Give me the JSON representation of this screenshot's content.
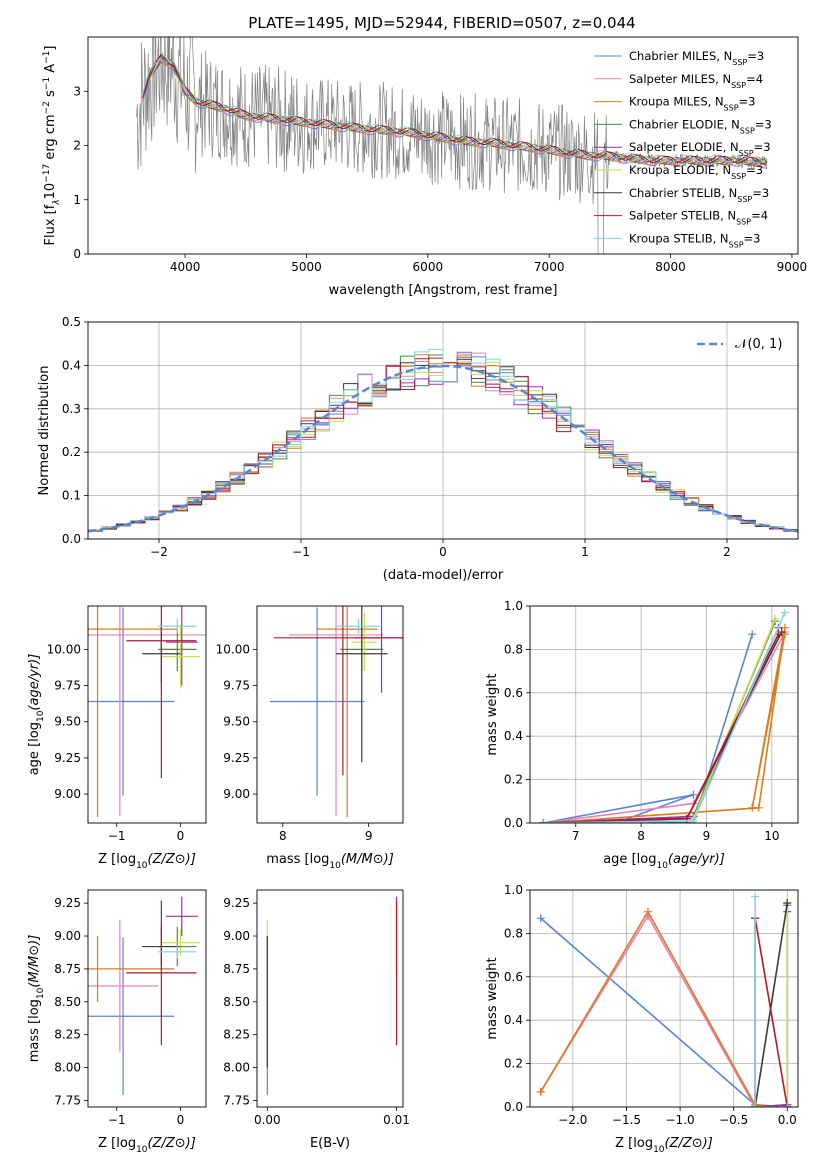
{
  "figure_title": "PLATE=1495, MJD=52944, FIBERID=0507, z=0.044",
  "colors": {
    "Chabrier MILES": "#5b84d6",
    "Salpeter MILES": "#e882b8",
    "Kroupa MILES": "#e07a1f",
    "Chabrier ELODIE": "#4f8a3c",
    "Salpeter ELODIE": "#9b2fae",
    "Kroupa ELODIE": "#c6df4a",
    "Chabrier STELIB": "#3a3a3a",
    "Salpeter STELIB": "#b2182b",
    "Kroupa STELIB": "#7fd4e0",
    "data": "#808080",
    "normal": "#5b84d6"
  },
  "chart_data": [
    {
      "id": "spectrum",
      "type": "line",
      "xlabel": "wavelength [Angstrom, rest frame]",
      "ylabel_plain": "Flux [f",
      "ylabel_sub": "λ",
      "ylabel_rest": "10",
      "ylabel_exp": "−17",
      "ylabel_unit": " erg cm",
      "ylabel_unit_exp": "−2",
      "ylabel_s": " s",
      "ylabel_s_exp": "−1",
      "ylabel_A": " A",
      "ylabel_A_exp": "−1",
      "ylabel_close": "]",
      "xlim": [
        3200,
        9050
      ],
      "ylim": [
        0,
        4.0
      ],
      "xticks": [
        4000,
        5000,
        6000,
        7000,
        8000,
        9000
      ],
      "yticks": [
        0,
        1,
        2,
        3
      ],
      "grid": false,
      "legend_position": "top-right",
      "legend": [
        {
          "name": "Chabrier MILES",
          "nssp": "3"
        },
        {
          "name": "Salpeter MILES",
          "nssp": "4"
        },
        {
          "name": "Kroupa MILES",
          "nssp": "3"
        },
        {
          "name": "Chabrier ELODIE",
          "nssp": "3"
        },
        {
          "name": "Salpeter ELODIE",
          "nssp": "3"
        },
        {
          "name": "Kroupa ELODIE",
          "nssp": "3"
        },
        {
          "name": "Chabrier STELIB",
          "nssp": "3"
        },
        {
          "name": "Salpeter STELIB",
          "nssp": "4"
        },
        {
          "name": "Kroupa STELIB",
          "nssp": "3"
        }
      ],
      "legend_nssp_label": "N",
      "legend_nssp_sub": "SSP",
      "model_continuum": {
        "x": [
          3650,
          3700,
          3800,
          3900,
          4000,
          4100,
          4200,
          4300,
          4500,
          4700,
          4900,
          5100,
          5300,
          5500,
          5700,
          5900,
          6100,
          6300,
          6500,
          6700,
          6900,
          7100,
          7300,
          7500,
          7700,
          7900,
          8100,
          8300,
          8500,
          8700,
          8800
        ],
        "y": [
          2.9,
          3.25,
          3.6,
          3.5,
          3.0,
          2.8,
          2.75,
          2.7,
          2.55,
          2.5,
          2.45,
          2.4,
          2.35,
          2.3,
          2.27,
          2.22,
          2.15,
          2.08,
          2.05,
          2.0,
          1.95,
          1.88,
          1.82,
          1.8,
          1.75,
          1.72,
          1.72,
          1.72,
          1.72,
          1.7,
          1.68
        ]
      }
    },
    {
      "id": "residual_hist",
      "type": "bar",
      "xlabel": "(data-model)/error",
      "ylabel": "Normed distribution",
      "xlim": [
        -2.5,
        2.5
      ],
      "ylim": [
        0,
        0.5
      ],
      "xticks": [
        -2,
        -1,
        0,
        1,
        2
      ],
      "yticks": [
        0.0,
        0.1,
        0.2,
        0.3,
        0.4,
        0.5
      ],
      "grid": true,
      "legend_position": "top-right",
      "normal_label": "𝒩(0, 1)",
      "bin_width": 0.1
    },
    {
      "id": "age_vs_Z",
      "type": "scatter",
      "xlabel": "Z [log10(Z/Z⊙)]",
      "ylabel": "age  [log10(age/yr)]",
      "xlim": [
        -1.45,
        0.4
      ],
      "ylim": [
        8.8,
        10.3
      ],
      "xticks": [
        -1,
        0
      ],
      "yticks": [
        9.0,
        9.25,
        9.5,
        9.75,
        10.0
      ],
      "grid": false,
      "points": [
        {
          "series": "Chabrier MILES",
          "x": -0.9,
          "xerr": 0.8,
          "y": 9.64,
          "yerr": 0.65
        },
        {
          "series": "Salpeter MILES",
          "x": -0.95,
          "xerr": 1.4,
          "y": 10.1,
          "yerr": 1.25
        },
        {
          "series": "Kroupa MILES",
          "x": -1.3,
          "xerr": 1.25,
          "y": 10.14,
          "yerr": 1.3
        },
        {
          "series": "Chabrier ELODIE",
          "x": -0.05,
          "xerr": 0.3,
          "y": 10.0,
          "yerr": 0.15
        },
        {
          "series": "Salpeter ELODIE",
          "x": 0.02,
          "xerr": 0.25,
          "y": 10.05,
          "yerr": 0.3
        },
        {
          "series": "Kroupa ELODIE",
          "x": 0.0,
          "xerr": 0.3,
          "y": 9.95,
          "yerr": 0.22
        },
        {
          "series": "Chabrier STELIB",
          "x": -0.3,
          "xerr": 0.3,
          "y": 9.97,
          "yerr": 0.2
        },
        {
          "series": "Salpeter STELIB",
          "x": -0.3,
          "xerr": 0.55,
          "y": 10.06,
          "yerr": 0.95
        },
        {
          "series": "Kroupa STELIB",
          "x": -0.05,
          "xerr": 0.3,
          "y": 10.16,
          "yerr": 0.05
        }
      ]
    },
    {
      "id": "age_vs_mass",
      "type": "scatter",
      "xlabel": "mass [log10(M/M⊙)]",
      "ylabel": "",
      "xlim": [
        7.7,
        9.4
      ],
      "ylim": [
        8.8,
        10.3
      ],
      "xticks": [
        8,
        9
      ],
      "yticks": [
        9.0,
        9.25,
        9.5,
        9.75,
        10.0
      ],
      "grid": false,
      "points": [
        {
          "series": "Chabrier MILES",
          "x": 8.4,
          "xerr": 0.55,
          "y": 9.64,
          "yerr": 0.65
        },
        {
          "series": "Salpeter MILES",
          "x": 8.62,
          "xerr": 0.55,
          "y": 10.1,
          "yerr": 1.25
        },
        {
          "series": "Kroupa MILES",
          "x": 8.75,
          "xerr": 0.35,
          "y": 10.14,
          "yerr": 1.3
        },
        {
          "series": "Chabrier ELODIE",
          "x": 8.92,
          "xerr": 0.25,
          "y": 10.0,
          "yerr": 0.15
        },
        {
          "series": "Salpeter ELODIE",
          "x": 9.15,
          "xerr": 0.3,
          "y": 10.08,
          "yerr": 0.38
        },
        {
          "series": "Kroupa ELODIE",
          "x": 8.95,
          "xerr": 0.15,
          "y": 10.05,
          "yerr": 0.2
        },
        {
          "series": "Chabrier STELIB",
          "x": 8.92,
          "xerr": 0.3,
          "y": 9.97,
          "yerr": 0.75
        },
        {
          "series": "Salpeter STELIB",
          "x": 8.7,
          "xerr": 0.8,
          "y": 10.08,
          "yerr": 0.95
        },
        {
          "series": "Kroupa STELIB",
          "x": 8.88,
          "xerr": 0.25,
          "y": 10.16,
          "yerr": 0.05
        }
      ]
    },
    {
      "id": "massweight_vs_age",
      "type": "line",
      "xlabel": "age  [log10(age/yr)]",
      "ylabel": "mass weight",
      "xlim": [
        6.3,
        10.4
      ],
      "ylim": [
        0,
        1.0
      ],
      "xticks": [
        7,
        8,
        9,
        10
      ],
      "yticks": [
        0.0,
        0.2,
        0.4,
        0.6,
        0.8,
        1.0
      ],
      "grid": true,
      "series": [
        {
          "name": "Chabrier MILES",
          "x": [
            6.5,
            8.8,
            7.7,
            8.8,
            9.7
          ],
          "y": [
            0.0,
            0.13,
            0.01,
            0.0,
            0.87
          ]
        },
        {
          "name": "Salpeter MILES",
          "x": [
            6.5,
            8.8,
            10.2
          ],
          "y": [
            0.0,
            0.09,
            0.88
          ]
        },
        {
          "name": "Kroupa MILES",
          "x": [
            6.5,
            9.8,
            10.2,
            9.7,
            10.2
          ],
          "y": [
            0.0,
            0.07,
            0.9,
            0.07,
            0.87
          ]
        },
        {
          "name": "Chabrier ELODIE",
          "x": [
            6.5,
            8.8,
            10.05
          ],
          "y": [
            0.0,
            0.03,
            0.93
          ]
        },
        {
          "name": "Salpeter ELODIE",
          "x": [
            6.5,
            8.8,
            10.1
          ],
          "y": [
            0.0,
            0.03,
            0.9
          ]
        },
        {
          "name": "Kroupa ELODIE",
          "x": [
            6.5,
            8.8,
            10.05
          ],
          "y": [
            0.0,
            0.02,
            0.94
          ]
        },
        {
          "name": "Chabrier STELIB",
          "x": [
            6.5,
            8.7,
            10.15
          ],
          "y": [
            0.0,
            0.02,
            0.88
          ]
        },
        {
          "name": "Salpeter STELIB",
          "x": [
            6.5,
            8.7,
            10.1
          ],
          "y": [
            0.0,
            0.02,
            0.87
          ]
        },
        {
          "name": "Kroupa STELIB",
          "x": [
            6.5,
            8.8,
            10.2
          ],
          "y": [
            0.0,
            0.01,
            0.97
          ]
        }
      ]
    },
    {
      "id": "mass_vs_Z",
      "type": "scatter",
      "xlabel": "Z [log10(Z/Z⊙)]",
      "ylabel": "mass [log10(M/M⊙)]",
      "xlim": [
        -1.45,
        0.4
      ],
      "ylim": [
        7.7,
        9.35
      ],
      "xticks": [
        -1,
        0
      ],
      "yticks": [
        7.75,
        8.0,
        8.25,
        8.5,
        8.75,
        9.0,
        9.25
      ],
      "grid": false,
      "points": [
        {
          "series": "Chabrier MILES",
          "x": -0.9,
          "xerr": 0.8,
          "y": 8.39,
          "yerr": 0.6
        },
        {
          "series": "Salpeter MILES",
          "x": -0.95,
          "xerr": 0.6,
          "y": 8.62,
          "yerr": 0.5
        },
        {
          "series": "Kroupa MILES",
          "x": -1.3,
          "xerr": 1.2,
          "y": 8.75,
          "yerr": 0.25
        },
        {
          "series": "Chabrier ELODIE",
          "x": -0.05,
          "xerr": 0.3,
          "y": 8.92,
          "yerr": 0.15
        },
        {
          "series": "Salpeter ELODIE",
          "x": 0.02,
          "xerr": 0.25,
          "y": 9.15,
          "yerr": 0.15
        },
        {
          "series": "Kroupa ELODIE",
          "x": 0.0,
          "xerr": 0.3,
          "y": 8.95,
          "yerr": 0.1
        },
        {
          "series": "Chabrier STELIB",
          "x": -0.3,
          "xerr": 0.3,
          "y": 8.92,
          "yerr": 0.15
        },
        {
          "series": "Salpeter STELIB",
          "x": -0.3,
          "xerr": 0.55,
          "y": 8.72,
          "yerr": 0.55
        },
        {
          "series": "Kroupa STELIB",
          "x": -0.05,
          "xerr": 0.3,
          "y": 8.88,
          "yerr": 0.05
        }
      ]
    },
    {
      "id": "mass_vs_ebv",
      "type": "scatter",
      "xlabel": "E(B-V)",
      "ylabel": "",
      "xlim": [
        -0.0008,
        0.0105
      ],
      "ylim": [
        7.7,
        9.35
      ],
      "xticks": [
        0.0,
        0.01
      ],
      "xticklabels": [
        "0.00",
        "0.01"
      ],
      "yticks": [
        7.75,
        8.0,
        8.25,
        8.5,
        8.75,
        9.0,
        9.25
      ],
      "grid": false,
      "points": [
        {
          "series": "Chabrier MILES",
          "x": 0.0,
          "y": 8.39,
          "yerr": 0.6
        },
        {
          "series": "Kroupa ELODIE",
          "x": 0.0,
          "y": 9.0,
          "yerr": 0.12
        },
        {
          "series": "Chabrier STELIB",
          "x": 0.0,
          "y": 8.5,
          "yerr": 0.5
        },
        {
          "series": "Salpeter ELODIE",
          "x": 0.01,
          "y": 9.0,
          "yerr": 0.3
        },
        {
          "series": "Salpeter STELIB",
          "x": 0.01,
          "y": 8.72,
          "yerr": 0.55
        }
      ]
    },
    {
      "id": "massweight_vs_Z",
      "type": "line",
      "xlabel": "Z [log10(Z/Z⊙)]",
      "ylabel": "mass weight",
      "xlim": [
        -2.4,
        0.1
      ],
      "ylim": [
        0,
        1.0
      ],
      "xticks": [
        -2.0,
        -1.5,
        -1.0,
        -0.5,
        0.0
      ],
      "xticklabels": [
        "−2.0",
        "−1.5",
        "−1.0",
        "−0.5",
        "0.0"
      ],
      "yticks": [
        0.0,
        0.2,
        0.4,
        0.6,
        0.8,
        1.0
      ],
      "grid": true,
      "series": [
        {
          "name": "Chabrier MILES",
          "x": [
            -2.3,
            -0.3,
            0.0
          ],
          "y": [
            0.87,
            0.01,
            0.0
          ]
        },
        {
          "name": "Salpeter MILES",
          "x": [
            -2.3,
            -1.3,
            -0.3,
            0.0
          ],
          "y": [
            0.07,
            0.88,
            0.0,
            0.0
          ]
        },
        {
          "name": "Kroupa MILES",
          "x": [
            -2.3,
            -1.3,
            -0.3,
            0.0
          ],
          "y": [
            0.07,
            0.9,
            0.01,
            0.0
          ]
        },
        {
          "name": "Chabrier ELODIE",
          "x": [
            -0.3,
            0.0,
            0.0
          ],
          "y": [
            0.0,
            0.01,
            0.93
          ]
        },
        {
          "name": "Salpeter ELODIE",
          "x": [
            -0.3,
            0.0,
            0.0
          ],
          "y": [
            0.0,
            0.01,
            0.9
          ]
        },
        {
          "name": "Kroupa ELODIE",
          "x": [
            -0.3,
            0.0,
            0.0
          ],
          "y": [
            0.0,
            0.0,
            0.94
          ]
        },
        {
          "name": "Chabrier STELIB",
          "x": [
            -0.3,
            -0.3,
            0.0
          ],
          "y": [
            0.87,
            0.0,
            0.94
          ]
        },
        {
          "name": "Salpeter STELIB",
          "x": [
            -0.3,
            0.0
          ],
          "y": [
            0.87,
            0.0
          ]
        },
        {
          "name": "Kroupa STELIB",
          "x": [
            -0.3,
            -0.3,
            0.0
          ],
          "y": [
            0.97,
            0.0,
            0.0
          ]
        }
      ]
    }
  ]
}
